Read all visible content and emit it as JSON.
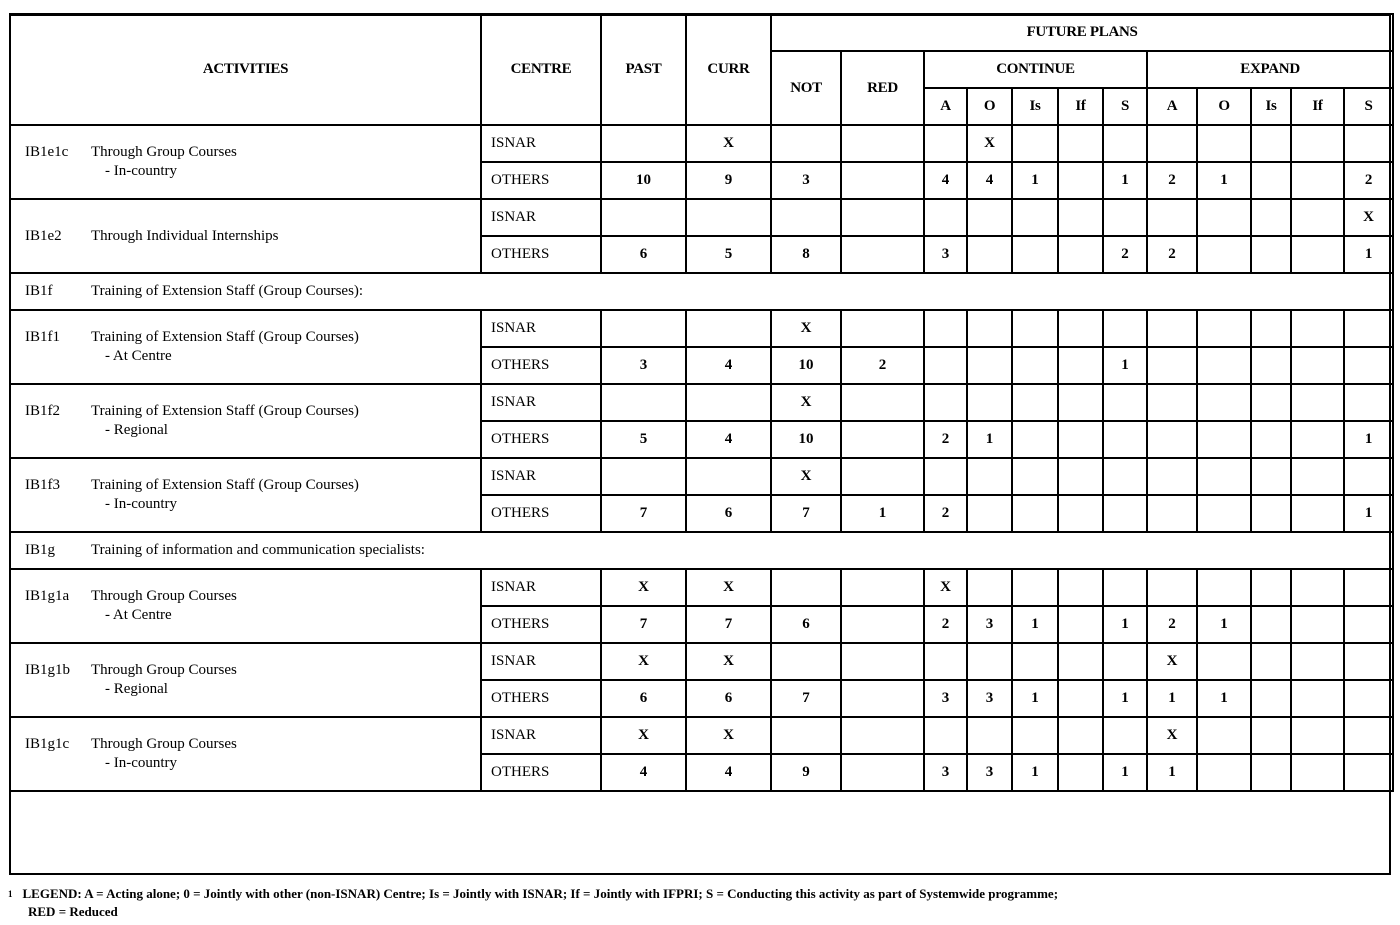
{
  "header": {
    "activities": "ACTIVITIES",
    "centre": "CENTRE",
    "past": "PAST",
    "curr": "CURR",
    "future_plans": "FUTURE PLANS",
    "not": "NOT",
    "red": "RED",
    "continue": "CONTINUE",
    "expand": "EXPAND",
    "continue_cols": [
      "A",
      "O",
      "Is",
      "If",
      "S"
    ],
    "expand_cols": [
      "A",
      "O",
      "Is",
      "If",
      "S"
    ]
  },
  "rows": [
    {
      "type": "group",
      "code": "IB1e1c",
      "title": "Through Group Courses",
      "subtitle": "- In-country",
      "isnar": {
        "centre": "ISNAR",
        "cells": [
          "",
          "X",
          "",
          "",
          "",
          "X",
          "",
          "",
          "",
          "",
          "",
          "",
          "",
          ""
        ]
      },
      "others": {
        "centre": "OTHERS",
        "cells": [
          "10",
          "9",
          "3",
          "",
          "4",
          "4",
          "1",
          "",
          "1",
          "2",
          "1",
          "",
          "",
          "2"
        ]
      }
    },
    {
      "type": "group",
      "code": "IB1e2",
      "title": "Through Individual Internships",
      "subtitle": "",
      "isnar": {
        "centre": "ISNAR",
        "cells": [
          "",
          "",
          "",
          "",
          "",
          "",
          "",
          "",
          "",
          "",
          "",
          "",
          "",
          "X"
        ]
      },
      "others": {
        "centre": "OTHERS",
        "cells": [
          "6",
          "5",
          "8",
          "",
          "3",
          "",
          "",
          "",
          "2",
          "2",
          "",
          "",
          "",
          "1"
        ]
      }
    },
    {
      "type": "section",
      "code": "IB1f",
      "title": "Training of Extension Staff (Group Courses):"
    },
    {
      "type": "group",
      "code": "IB1f1",
      "title": "Training of Extension Staff (Group Courses)",
      "subtitle": "- At Centre",
      "isnar": {
        "centre": "ISNAR",
        "cells": [
          "",
          "",
          "X",
          "",
          "",
          "",
          "",
          "",
          "",
          "",
          "",
          "",
          "",
          ""
        ]
      },
      "others": {
        "centre": "OTHERS",
        "cells": [
          "3",
          "4",
          "10",
          "2",
          "",
          "",
          "",
          "",
          "1",
          "",
          "",
          "",
          "",
          ""
        ]
      }
    },
    {
      "type": "group",
      "code": "IB1f2",
      "title": "Training of Extension Staff (Group Courses)",
      "subtitle": "- Regional",
      "isnar": {
        "centre": "ISNAR",
        "cells": [
          "",
          "",
          "X",
          "",
          "",
          "",
          "",
          "",
          "",
          "",
          "",
          "",
          "",
          ""
        ]
      },
      "others": {
        "centre": "OTHERS",
        "cells": [
          "5",
          "4",
          "10",
          "",
          "2",
          "1",
          "",
          "",
          "",
          "",
          "",
          "",
          "",
          "1"
        ]
      }
    },
    {
      "type": "group",
      "code": "IB1f3",
      "title": "Training of Extension Staff (Group Courses)",
      "subtitle": "- In-country",
      "isnar": {
        "centre": "ISNAR",
        "cells": [
          "",
          "",
          "X",
          "",
          "",
          "",
          "",
          "",
          "",
          "",
          "",
          "",
          "",
          ""
        ]
      },
      "others": {
        "centre": "OTHERS",
        "cells": [
          "7",
          "6",
          "7",
          "1",
          "2",
          "",
          "",
          "",
          "",
          "",
          "",
          "",
          "",
          "1"
        ]
      }
    },
    {
      "type": "section",
      "code": "IB1g",
      "title": "Training of information and communication specialists:"
    },
    {
      "type": "group",
      "code": "IB1g1a",
      "title": "Through Group Courses",
      "subtitle": "- At Centre",
      "isnar": {
        "centre": "ISNAR",
        "cells": [
          "X",
          "X",
          "",
          "",
          "X",
          "",
          "",
          "",
          "",
          "",
          "",
          "",
          "",
          ""
        ]
      },
      "others": {
        "centre": "OTHERS",
        "cells": [
          "7",
          "7",
          "6",
          "",
          "2",
          "3",
          "1",
          "",
          "1",
          "2",
          "1",
          "",
          "",
          ""
        ]
      }
    },
    {
      "type": "group",
      "code": "IB1g1b",
      "title": "Through Group Courses",
      "subtitle": "- Regional",
      "isnar": {
        "centre": "ISNAR",
        "cells": [
          "X",
          "X",
          "",
          "",
          "",
          "",
          "",
          "",
          "",
          "X",
          "",
          "",
          "",
          ""
        ]
      },
      "others": {
        "centre": "OTHERS",
        "cells": [
          "6",
          "6",
          "7",
          "",
          "3",
          "3",
          "1",
          "",
          "1",
          "1",
          "1",
          "",
          "",
          ""
        ]
      }
    },
    {
      "type": "group",
      "code": "IB1g1c",
      "title": "Through Group Courses",
      "subtitle": "- In-country",
      "isnar": {
        "centre": "ISNAR",
        "cells": [
          "X",
          "X",
          "",
          "",
          "",
          "",
          "",
          "",
          "",
          "X",
          "",
          "",
          "",
          ""
        ]
      },
      "others": {
        "centre": "OTHERS",
        "cells": [
          "4",
          "4",
          "9",
          "",
          "3",
          "3",
          "1",
          "",
          "1",
          "1",
          "",
          "",
          "",
          ""
        ]
      }
    }
  ],
  "footnote": {
    "marker": "1",
    "line1": "LEGEND: A = Acting alone; 0 = Jointly with other (non-ISNAR) Centre; Is = Jointly with ISNAR; If = Jointly with IFPRI; S = Conducting this activity as part of Systemwide programme;",
    "line2": "RED = Reduced"
  }
}
